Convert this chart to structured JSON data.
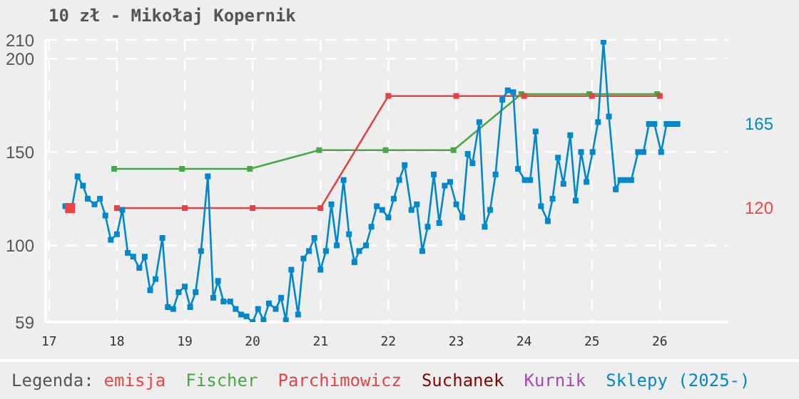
{
  "chart_data": {
    "type": "line",
    "title": "10 zł - Mikołaj Kopernik",
    "legend_title": "Legenda:",
    "legend": "bottom",
    "grid": true,
    "marker": "square",
    "line_style": "solid",
    "xlim": [
      16.95,
      27
    ],
    "xticks": [
      17,
      18,
      19,
      20,
      21,
      22,
      23,
      24,
      25,
      26
    ],
    "ylim": [
      59,
      210
    ],
    "yticks": [
      59,
      100,
      150,
      200,
      210
    ],
    "y2lim": [
      59,
      210
    ],
    "y2ticks": [
      165,
      120
    ],
    "series": [
      {
        "name": "emisja",
        "type": "scatter",
        "color": "#ee4444",
        "x": [
          17.31
        ],
        "values": [
          120
        ]
      },
      {
        "name": "Fischer",
        "color": "#44aa44",
        "x": [
          17.96,
          18.96,
          19.96,
          20.98,
          21.96,
          22.96,
          23.96,
          24.96,
          25.96
        ],
        "values": [
          141,
          141,
          141,
          151,
          151,
          151,
          181,
          181,
          181
        ]
      },
      {
        "name": "Parchimowicz",
        "color": "#e04444",
        "x": [
          18,
          19,
          20,
          21,
          22,
          23,
          24,
          25,
          26
        ],
        "values": [
          120,
          120,
          120,
          120,
          180,
          180,
          180,
          180,
          180
        ]
      },
      {
        "name": "Suchanek",
        "color": "#880000"
      },
      {
        "name": "Kurnik",
        "color": "#aa44bb"
      },
      {
        "name": "Sklepy (2025-)",
        "color": "#0088cc",
        "x": [
          17.24,
          17.34,
          17.42,
          17.5,
          17.57,
          17.67,
          17.75,
          17.83,
          17.91,
          18.0,
          18.08,
          18.16,
          18.24,
          18.33,
          18.41,
          18.49,
          18.57,
          18.67,
          18.75,
          18.83,
          18.91,
          19.0,
          19.08,
          19.16,
          19.24,
          19.34,
          19.42,
          19.49,
          19.57,
          19.67,
          19.75,
          19.83,
          19.91,
          20.0,
          20.08,
          20.16,
          20.24,
          20.34,
          20.42,
          20.49,
          20.57,
          20.67,
          20.75,
          20.83,
          20.91,
          21.0,
          21.08,
          21.16,
          21.24,
          21.34,
          21.42,
          21.5,
          21.57,
          21.67,
          21.75,
          21.83,
          21.91,
          22.0,
          22.08,
          22.16,
          22.24,
          22.34,
          22.42,
          22.5,
          22.58,
          22.67,
          22.75,
          22.83,
          22.91,
          23.0,
          23.09,
          23.17,
          23.24,
          23.34,
          23.42,
          23.5,
          23.58,
          23.68,
          23.76,
          23.84,
          23.91,
          24.01,
          24.09,
          24.17,
          24.25,
          24.35,
          24.42,
          24.5,
          24.58,
          24.68,
          24.76,
          24.84,
          24.92,
          25.01,
          25.09,
          25.17,
          25.25,
          25.35,
          25.42,
          25.5,
          25.58,
          25.68,
          25.76,
          25.84,
          25.92,
          26.02,
          26.1,
          26.18,
          26.26
        ],
        "values": [
          121,
          121,
          137,
          132,
          125,
          122,
          125,
          116,
          103,
          106,
          119,
          96,
          94,
          88,
          94,
          76,
          82,
          104,
          67,
          66,
          75,
          78,
          67,
          75,
          97,
          137,
          72,
          81,
          70,
          70,
          66,
          63,
          62,
          59,
          66,
          60,
          69,
          66,
          72,
          60,
          87,
          63,
          93,
          97,
          104,
          87,
          97,
          122,
          100,
          135,
          106,
          91,
          97,
          100,
          110,
          121,
          119,
          115,
          125,
          135,
          143,
          119,
          122,
          97,
          110,
          138,
          112,
          132,
          134,
          122,
          115,
          149,
          144,
          166,
          110,
          119,
          138,
          178,
          183,
          182,
          141,
          135,
          135,
          161,
          121,
          113,
          125,
          147,
          133,
          159,
          124,
          150,
          134,
          150,
          166,
          209,
          169,
          130,
          135,
          135,
          135,
          150,
          150,
          165,
          165,
          150,
          165,
          165,
          165
        ]
      }
    ]
  }
}
